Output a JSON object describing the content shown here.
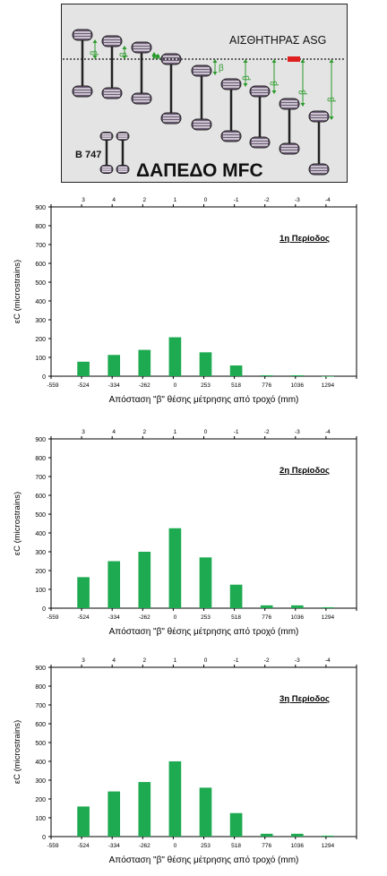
{
  "diagram": {
    "sensor_label": "ΑΙΣΘΗΤΗΡΑΣ ASG",
    "floor_label": "ΔΑΠΕΔΟ MFC",
    "aircraft_label": "B 747",
    "dimension_symbol": "β",
    "colors": {
      "background": "#e4e4e4",
      "sensor": "#e02020",
      "arrow": "#2a9a2a",
      "wheel": "#6e5c78"
    }
  },
  "chart_data": [
    {
      "type": "bar",
      "title": "1η Περίοδος",
      "categories": [
        "-559",
        "-524",
        "-334",
        "-262",
        "0",
        "253",
        "518",
        "776",
        "1036",
        "1294"
      ],
      "top_labels": [
        "",
        "3",
        "4",
        "2",
        "1",
        "0",
        "-1",
        "-2",
        "-3",
        "-4"
      ],
      "values": [
        null,
        77,
        113,
        140,
        207,
        127,
        57,
        5,
        5,
        0
      ],
      "ylim": [
        0,
        900
      ],
      "yticks": [
        0,
        100,
        200,
        300,
        400,
        500,
        600,
        700,
        800,
        900
      ],
      "ylabel": "εC (microstrains)",
      "xlabel": "Απόσταση \"β\" θέσης μέτρησης από τροχό (mm)",
      "bar_color": "#1eaa50",
      "grid": false
    },
    {
      "type": "bar",
      "title": "2η Περίοδος",
      "categories": [
        "-559",
        "-524",
        "-334",
        "-262",
        "0",
        "253",
        "518",
        "776",
        "1036",
        "1294"
      ],
      "top_labels": [
        "",
        "3",
        "4",
        "2",
        "1",
        "0",
        "-1",
        "-2",
        "-3",
        "-4"
      ],
      "values": [
        null,
        165,
        250,
        300,
        425,
        270,
        125,
        15,
        15,
        5
      ],
      "ylim": [
        0,
        900
      ],
      "yticks": [
        0,
        100,
        200,
        300,
        400,
        500,
        600,
        700,
        800,
        900
      ],
      "ylabel": "εC (microstrains)",
      "xlabel": "Απόσταση \"β\" θέσης μέτρησης από τροχό (mm)",
      "bar_color": "#1eaa50",
      "grid": false
    },
    {
      "type": "bar",
      "title": "3η Περίοδος",
      "categories": [
        "-559",
        "-524",
        "-334",
        "-262",
        "0",
        "253",
        "518",
        "776",
        "1036",
        "1294"
      ],
      "top_labels": [
        "",
        "3",
        "4",
        "2",
        "1",
        "0",
        "-1",
        "-2",
        "-3",
        "-4"
      ],
      "values": [
        null,
        160,
        240,
        290,
        400,
        260,
        125,
        15,
        15,
        5
      ],
      "ylim": [
        0,
        900
      ],
      "yticks": [
        0,
        100,
        200,
        300,
        400,
        500,
        600,
        700,
        800,
        900
      ],
      "ylabel": "εC (microstrains)",
      "xlabel": "Απόσταση \"β\" θέσης μέτρησης από τροχό (mm)",
      "bar_color": "#1eaa50",
      "grid": false
    }
  ]
}
